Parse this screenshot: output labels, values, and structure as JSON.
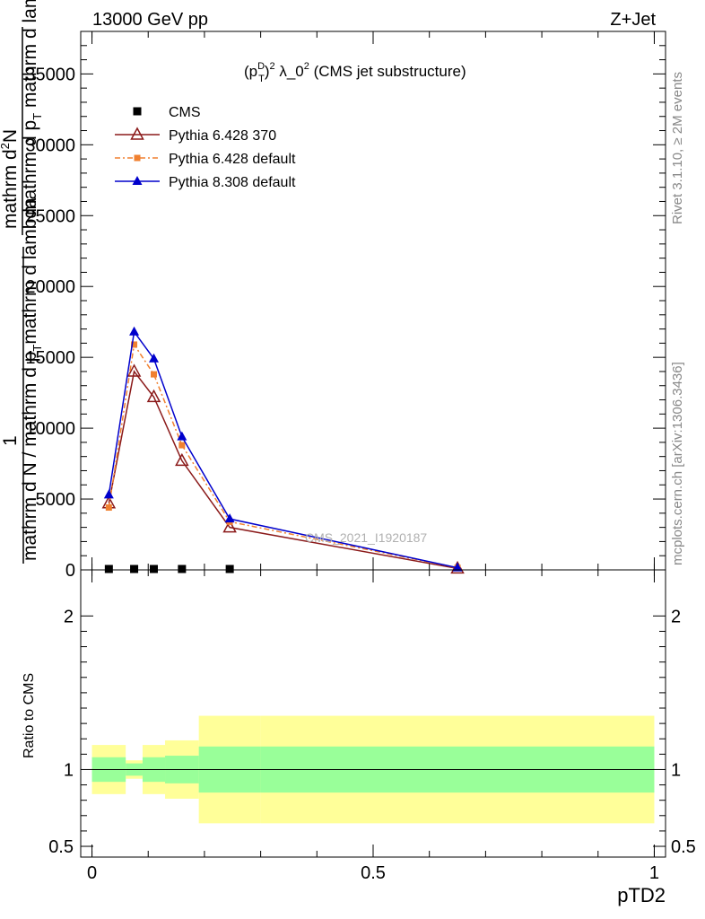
{
  "header": {
    "left": "13000 GeV pp",
    "right": "Z+Jet"
  },
  "side_labels": {
    "rivet": "Rivet 3.1.10, ≥ 2M events",
    "mcplots": "mcplots.cern.ch [arXiv:1306.3436]"
  },
  "watermark": "CMS_2021_I1920187",
  "main_title": "(p_T^D)^2 λ_0^2 (CMS jet substructure)",
  "main_title_parts": {
    "pre": "(p",
    "sup1": "D",
    "sub1": "T",
    "post": ")",
    "sup2": "2",
    "mid": " λ_0",
    "sup3": "2",
    "end": " (CMS jet substructure)"
  },
  "y_label": {
    "numerator_one": "1",
    "line_a": "mathrm d N / mathrm d p",
    "line_a_sub": "T",
    "line_b": "mathrm d lambda",
    "numerator": "mathrm d",
    "numerator_sup": "2",
    "numerator_tail": "N",
    "denominator": "mathrm d p",
    "denominator_sub": "T",
    "denominator_tail": " mathrm d lambda"
  },
  "ratio_label": "Ratio to CMS",
  "x_axis_label": "pTD2",
  "legend": [
    {
      "name": "CMS",
      "color": "#000000",
      "marker": "square"
    },
    {
      "name": "Pythia 6.428 370",
      "color": "#8b1a1a",
      "marker": "open-triangle"
    },
    {
      "name": "Pythia 6.428 default",
      "color": "#f08030",
      "marker": "small-square"
    },
    {
      "name": "Pythia 8.308 default",
      "color": "#0000cc",
      "marker": "filled-triangle"
    }
  ],
  "chart_data": {
    "type": "line",
    "title": "(p_T^D)^2 λ_0^2 (CMS jet substructure)",
    "xlabel": "pTD2",
    "ylabel": "1 / (mathrm d N / mathrm d p_T mathrm d lambda) mathrm d^2N / (mathrm d p_T mathrm d lambda)",
    "xlim": [
      -0.02,
      1.02
    ],
    "ylim": [
      0,
      38000
    ],
    "x_ticks": [
      {
        "v": 0,
        "label": "0"
      },
      {
        "v": 0.5,
        "label": "0.5"
      },
      {
        "v": 1,
        "label": "1"
      }
    ],
    "y_ticks": [
      {
        "v": 0,
        "label": "0"
      },
      {
        "v": 5000,
        "label": "5000"
      },
      {
        "v": 10000,
        "label": "10000"
      },
      {
        "v": 15000,
        "label": "15000"
      },
      {
        "v": 20000,
        "label": "20000"
      },
      {
        "v": 25000,
        "label": "25000"
      },
      {
        "v": 30000,
        "label": "30000"
      },
      {
        "v": 35000,
        "label": "35000"
      }
    ],
    "x": [
      0.03,
      0.075,
      0.11,
      0.16,
      0.245,
      0.65
    ],
    "series": [
      {
        "name": "CMS",
        "color": "#000000",
        "marker": "square",
        "x": [
          0.03,
          0.075,
          0.11,
          0.16,
          0.245
        ],
        "values": [
          0,
          0,
          0,
          0,
          0
        ]
      },
      {
        "name": "Pythia 6.428 370",
        "color": "#8b1a1a",
        "marker": "open-triangle",
        "dash": "",
        "values": [
          4700,
          14000,
          12200,
          7700,
          3000,
          100
        ]
      },
      {
        "name": "Pythia 6.428 default",
        "color": "#f08030",
        "marker": "small-square",
        "dash": "6,3,2,3",
        "values": [
          4400,
          15900,
          13800,
          8800,
          3400,
          150
        ]
      },
      {
        "name": "Pythia 8.308 default",
        "color": "#0000cc",
        "marker": "filled-triangle",
        "dash": "",
        "values": [
          5300,
          16800,
          14900,
          9400,
          3600,
          150
        ]
      }
    ],
    "ratio": {
      "ylabel": "Ratio to CMS",
      "ylim": [
        0.43,
        2.3
      ],
      "y_ticks": [
        {
          "v": 0.5,
          "label": "0.5"
        },
        {
          "v": 1,
          "label": "1"
        },
        {
          "v": 2,
          "label": "2"
        }
      ],
      "bands": [
        {
          "x0": 0.0,
          "x1": 0.06,
          "inner": [
            0.92,
            1.08
          ],
          "outer": [
            0.84,
            1.16
          ]
        },
        {
          "x0": 0.06,
          "x1": 0.09,
          "inner": [
            0.96,
            1.04
          ],
          "outer": [
            0.94,
            1.06
          ]
        },
        {
          "x0": 0.09,
          "x1": 0.13,
          "inner": [
            0.92,
            1.08
          ],
          "outer": [
            0.84,
            1.16
          ]
        },
        {
          "x0": 0.13,
          "x1": 0.19,
          "inner": [
            0.91,
            1.09
          ],
          "outer": [
            0.81,
            1.19
          ]
        },
        {
          "x0": 0.19,
          "x1": 0.3,
          "inner": [
            0.85,
            1.15
          ],
          "outer": [
            0.65,
            1.35
          ]
        },
        {
          "x0": 0.3,
          "x1": 1.0,
          "inner": [
            0.85,
            1.15
          ],
          "outer": [
            0.65,
            1.35
          ]
        }
      ],
      "inner_color": "#99ff99",
      "outer_color": "#ffff99"
    }
  }
}
